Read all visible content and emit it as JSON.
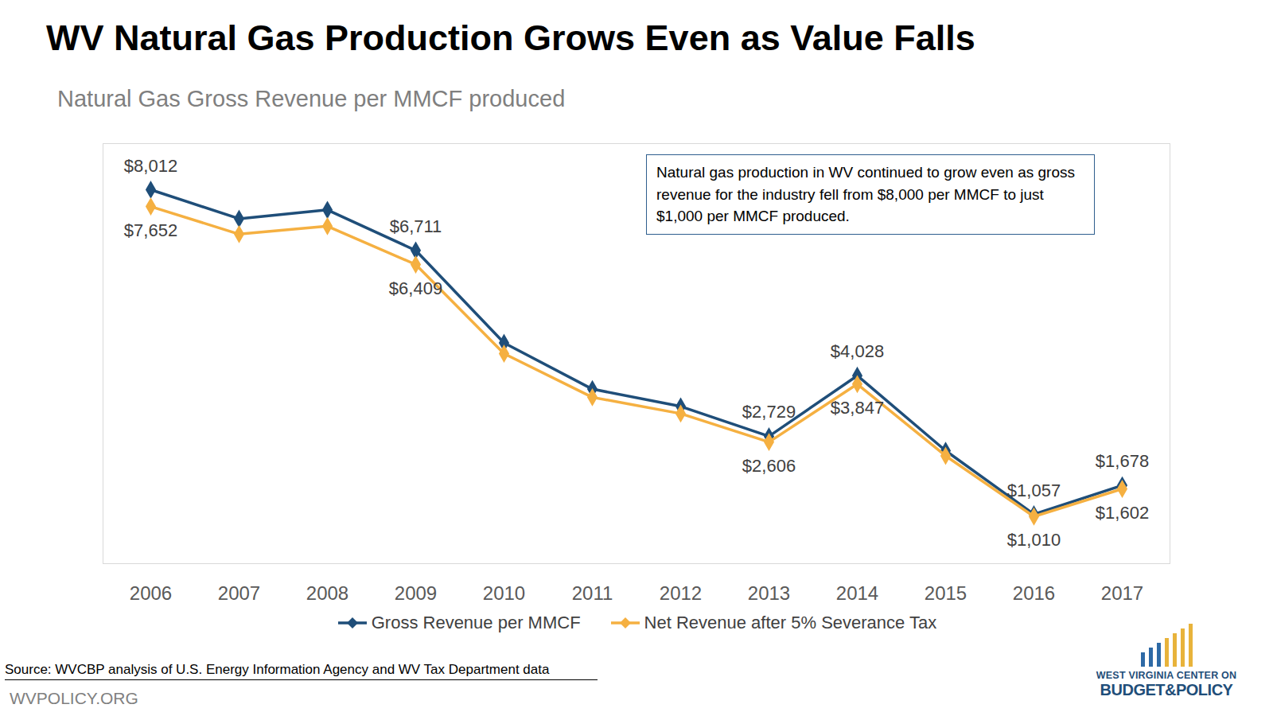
{
  "chart_data": {
    "type": "line",
    "title": "WV Natural Gas Production Grows Even as Value Falls",
    "subtitle": "Natural Gas Gross Revenue per MMCF produced",
    "annotation": "Natural gas production in WV continued to grow even as gross revenue for the industry fell from $8,000 per MMCF to just $1,000 per MMCF produced.",
    "source": "Source: WVCBP analysis of U.S. Energy Information Agency and WV Tax Department data",
    "footer": "WVPOLICY.ORG",
    "logo": [
      "WEST VIRGINIA CENTER ON",
      "BUDGET&POLICY"
    ],
    "categories": [
      "2006",
      "2007",
      "2008",
      "2009",
      "2010",
      "2011",
      "2012",
      "2013",
      "2014",
      "2015",
      "2016",
      "2017"
    ],
    "series": [
      {
        "name": "Gross Revenue per MMCF",
        "color": "#1f4e79",
        "marker": "diamond",
        "values": [
          8012,
          7390,
          7580,
          6711,
          4730,
          3740,
          3370,
          2729,
          4028,
          2420,
          1057,
          1678
        ],
        "value_labels": [
          "$8,012",
          null,
          null,
          "$6,711",
          null,
          null,
          null,
          "$2,729",
          "$4,028",
          null,
          "$1,057",
          "$1,678"
        ]
      },
      {
        "name": "Net Revenue after 5% Severance Tax",
        "color": "#f5b041",
        "marker": "diamond",
        "values": [
          7652,
          7060,
          7230,
          6409,
          4500,
          3565,
          3215,
          2606,
          3847,
          2310,
          1010,
          1602
        ],
        "value_labels": [
          "$7,652",
          null,
          null,
          "$6,409",
          null,
          null,
          null,
          "$2,606",
          "$3,847",
          null,
          "$1,010",
          "$1,602"
        ]
      }
    ],
    "ylim": [
      0,
      9000
    ],
    "yticks": [],
    "grid": false,
    "legend": "bottom",
    "data_labels": true,
    "tick_labels": "x"
  }
}
